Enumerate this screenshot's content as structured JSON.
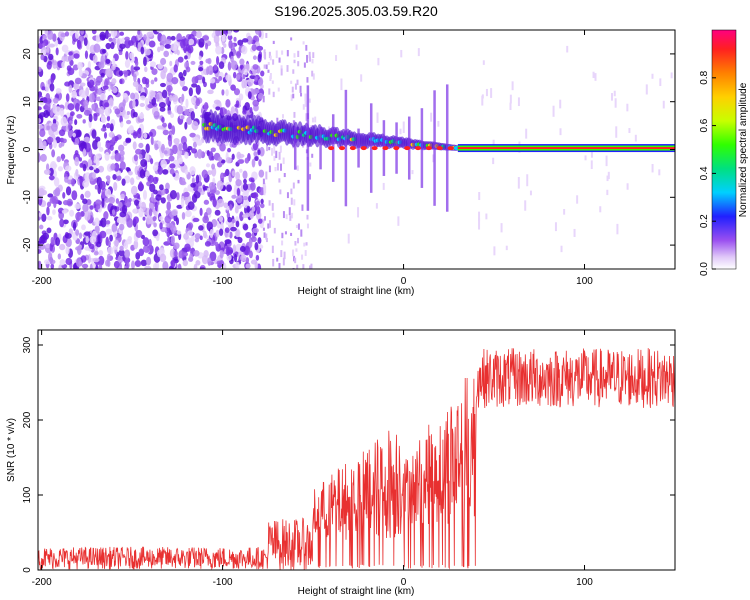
{
  "title": "S196.2025.305.03.59.R20",
  "chart_data": [
    {
      "type": "heatmap",
      "xlabel": "Height of straight line (km)",
      "ylabel": "Frequency (Hz)",
      "xlim": [
        -202,
        150
      ],
      "ylim": [
        -25,
        25
      ],
      "xticks": [
        -200,
        -100,
        0,
        100
      ],
      "yticks": [
        -20,
        -10,
        0,
        10,
        20
      ],
      "colorbar": {
        "label": "Normalized spectral amplitude",
        "range": [
          0,
          1
        ],
        "ticks": [
          "0.0",
          "0.2",
          "0.4",
          "0.6",
          "0.8"
        ],
        "tick_values": [
          0.0,
          0.2,
          0.4,
          0.6,
          0.8
        ]
      },
      "features": {
        "noise_region_end_km": -78,
        "sparse_region_end_km": -50,
        "carrier_start_km": 30,
        "carrier_frequency_hz": 0.3,
        "drift_start_frequency_hz": 5,
        "drift_start_km": -110
      }
    },
    {
      "type": "line",
      "xlabel": "Height of straight line (km)",
      "ylabel": "SNR (10 * v/v)",
      "xlim": [
        -202,
        150
      ],
      "ylim": [
        0,
        320
      ],
      "xticks": [
        -200,
        -100,
        0,
        100
      ],
      "yticks": [
        0,
        100,
        200,
        300
      ],
      "series": [
        {
          "name": "SNR",
          "color": "#e83030",
          "segments": [
            {
              "x_start": -202,
              "x_end": -75,
              "baseline": 10,
              "spread": 30
            },
            {
              "x_start": -75,
              "x_end": -50,
              "baseline": 20,
              "spread": 70
            },
            {
              "x_start": -50,
              "x_end": 0,
              "baseline": 40,
              "spread": 170
            },
            {
              "x_start": 0,
              "x_end": 40,
              "baseline": 60,
              "spread": 220
            },
            {
              "x_start": 40,
              "x_end": 150,
              "baseline": 240,
              "spread": 80
            }
          ]
        }
      ]
    }
  ]
}
